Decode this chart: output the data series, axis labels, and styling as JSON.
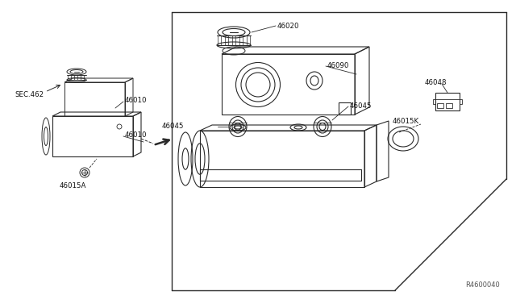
{
  "bg_color": "#ffffff",
  "line_color": "#2a2a2a",
  "figure_size": [
    6.4,
    3.72
  ],
  "dpi": 100,
  "diagram_ref": "R4600040",
  "labels": {
    "46020": "46020",
    "46090": "46090",
    "46045a": "46045",
    "46045b": "46045",
    "46048": "46048",
    "46015K": "46015K",
    "46010a": "46010",
    "46010b": "46010",
    "46015A": "46015A",
    "SEC462": "SEC.462"
  }
}
